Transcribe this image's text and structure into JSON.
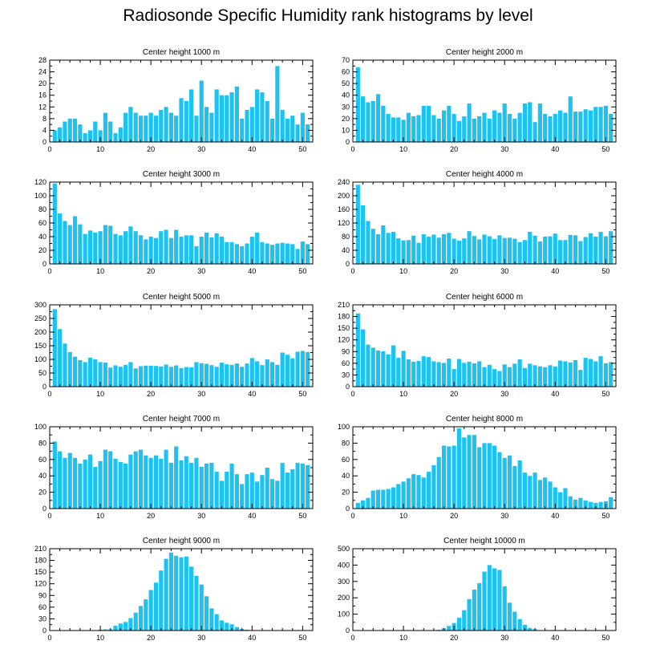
{
  "figure": {
    "title": "Radiosonde Specific Humidity rank histograms by level"
  },
  "colors": {
    "bar": "#1EC2F0",
    "axis": "#000000",
    "background": "#ffffff"
  },
  "chart_data": [
    {
      "type": "bar",
      "title": "Center height 1000 m",
      "x": [
        1,
        2,
        3,
        4,
        5,
        6,
        7,
        8,
        9,
        10,
        11,
        12,
        13,
        14,
        15,
        16,
        17,
        18,
        19,
        20,
        21,
        22,
        23,
        24,
        25,
        26,
        27,
        28,
        29,
        30,
        31,
        32,
        33,
        34,
        35,
        36,
        37,
        38,
        39,
        40,
        41,
        42,
        43,
        44,
        45,
        46,
        47,
        48,
        49,
        50,
        51
      ],
      "values": [
        4,
        5,
        7,
        8,
        8,
        6,
        3,
        4,
        7,
        4,
        10,
        7,
        3,
        5,
        10,
        12,
        10,
        9,
        9,
        10,
        9,
        11,
        12,
        10,
        9,
        15,
        14,
        18,
        9,
        21,
        12,
        10,
        18,
        16,
        16,
        17,
        19,
        8,
        11,
        12,
        18,
        17,
        14,
        8,
        26,
        11,
        8,
        9,
        6,
        10,
        6
      ],
      "xlim": [
        0,
        52
      ],
      "ylim": [
        0,
        28
      ],
      "xticks": [
        0,
        10,
        20,
        30,
        40,
        50
      ],
      "yticks": [
        0,
        4,
        8,
        12,
        16,
        20,
        24,
        28
      ]
    },
    {
      "type": "bar",
      "title": "Center height 2000 m",
      "x": [
        1,
        2,
        3,
        4,
        5,
        6,
        7,
        8,
        9,
        10,
        11,
        12,
        13,
        14,
        15,
        16,
        17,
        18,
        19,
        20,
        21,
        22,
        23,
        24,
        25,
        26,
        27,
        28,
        29,
        30,
        31,
        32,
        33,
        34,
        35,
        36,
        37,
        38,
        39,
        40,
        41,
        42,
        43,
        44,
        45,
        46,
        47,
        48,
        49,
        50,
        51
      ],
      "values": [
        64,
        39,
        34,
        35,
        41,
        31,
        24,
        21,
        21,
        19,
        25,
        22,
        23,
        31,
        31,
        23,
        20,
        27,
        31,
        24,
        18,
        22,
        33,
        20,
        22,
        25,
        20,
        27,
        25,
        33,
        24,
        20,
        25,
        33,
        34,
        17,
        33,
        24,
        22,
        24,
        27,
        25,
        39,
        26,
        26,
        28,
        27,
        30,
        30,
        31,
        24
      ],
      "xlim": [
        0,
        52
      ],
      "ylim": [
        0,
        70
      ],
      "xticks": [
        0,
        10,
        20,
        30,
        40,
        50
      ],
      "yticks": [
        0,
        10,
        20,
        30,
        40,
        50,
        60,
        70
      ]
    },
    {
      "type": "bar",
      "title": "Center height 3000 m",
      "x": [
        1,
        2,
        3,
        4,
        5,
        6,
        7,
        8,
        9,
        10,
        11,
        12,
        13,
        14,
        15,
        16,
        17,
        18,
        19,
        20,
        21,
        22,
        23,
        24,
        25,
        26,
        27,
        28,
        29,
        30,
        31,
        32,
        33,
        34,
        35,
        36,
        37,
        38,
        39,
        40,
        41,
        42,
        43,
        44,
        45,
        46,
        47,
        48,
        49,
        50,
        51
      ],
      "values": [
        118,
        74,
        63,
        57,
        70,
        58,
        44,
        49,
        46,
        48,
        57,
        56,
        44,
        42,
        48,
        55,
        48,
        42,
        36,
        40,
        38,
        48,
        50,
        38,
        50,
        40,
        42,
        42,
        26,
        40,
        46,
        39,
        45,
        40,
        32,
        32,
        29,
        26,
        30,
        40,
        46,
        32,
        30,
        28,
        30,
        31,
        30,
        29,
        22,
        33,
        29
      ],
      "xlim": [
        0,
        52
      ],
      "ylim": [
        0,
        120
      ],
      "xticks": [
        0,
        10,
        20,
        30,
        40,
        50
      ],
      "yticks": [
        0,
        20,
        40,
        60,
        80,
        100,
        120
      ]
    },
    {
      "type": "bar",
      "title": "Center height 4000 m",
      "x": [
        1,
        2,
        3,
        4,
        5,
        6,
        7,
        8,
        9,
        10,
        11,
        12,
        13,
        14,
        15,
        16,
        17,
        18,
        19,
        20,
        21,
        22,
        23,
        24,
        25,
        26,
        27,
        28,
        29,
        30,
        31,
        32,
        33,
        34,
        35,
        36,
        37,
        38,
        39,
        40,
        41,
        42,
        43,
        44,
        45,
        46,
        47,
        48,
        49,
        50,
        51
      ],
      "values": [
        232,
        172,
        126,
        103,
        87,
        113,
        91,
        94,
        75,
        69,
        70,
        83,
        62,
        87,
        80,
        86,
        77,
        87,
        91,
        74,
        68,
        75,
        96,
        82,
        72,
        86,
        81,
        73,
        84,
        76,
        77,
        74,
        64,
        70,
        94,
        83,
        66,
        80,
        81,
        89,
        70,
        70,
        85,
        84,
        67,
        79,
        90,
        80,
        94,
        81,
        96
      ],
      "xlim": [
        0,
        52
      ],
      "ylim": [
        0,
        240
      ],
      "xticks": [
        0,
        10,
        20,
        30,
        40,
        50
      ],
      "yticks": [
        0,
        40,
        80,
        120,
        160,
        200,
        240
      ]
    },
    {
      "type": "bar",
      "title": "Center height 5000 m",
      "x": [
        1,
        2,
        3,
        4,
        5,
        6,
        7,
        8,
        9,
        10,
        11,
        12,
        13,
        14,
        15,
        16,
        17,
        18,
        19,
        20,
        21,
        22,
        23,
        24,
        25,
        26,
        27,
        28,
        29,
        30,
        31,
        32,
        33,
        34,
        35,
        36,
        37,
        38,
        39,
        40,
        41,
        42,
        43,
        44,
        45,
        46,
        47,
        48,
        49,
        50,
        51
      ],
      "values": [
        284,
        211,
        158,
        127,
        110,
        97,
        90,
        106,
        100,
        90,
        88,
        70,
        78,
        73,
        80,
        90,
        67,
        75,
        77,
        77,
        76,
        74,
        81,
        73,
        78,
        68,
        72,
        71,
        90,
        86,
        84,
        79,
        73,
        88,
        82,
        80,
        85,
        73,
        85,
        105,
        93,
        79,
        100,
        90,
        80,
        125,
        117,
        104,
        128,
        131,
        127
      ],
      "xlim": [
        0,
        52
      ],
      "ylim": [
        0,
        300
      ],
      "xticks": [
        0,
        10,
        20,
        30,
        40,
        50
      ],
      "yticks": [
        0,
        50,
        100,
        150,
        200,
        250,
        300
      ]
    },
    {
      "type": "bar",
      "title": "Center height 6000 m",
      "x": [
        1,
        2,
        3,
        4,
        5,
        6,
        7,
        8,
        9,
        10,
        11,
        12,
        13,
        14,
        15,
        16,
        17,
        18,
        19,
        20,
        21,
        22,
        23,
        24,
        25,
        26,
        27,
        28,
        29,
        30,
        31,
        32,
        33,
        34,
        35,
        36,
        37,
        38,
        39,
        40,
        41,
        42,
        43,
        44,
        45,
        46,
        47,
        48,
        49,
        50,
        51
      ],
      "values": [
        188,
        147,
        108,
        100,
        93,
        91,
        83,
        106,
        74,
        92,
        70,
        64,
        66,
        78,
        76,
        65,
        63,
        61,
        72,
        45,
        71,
        61,
        64,
        60,
        65,
        50,
        56,
        45,
        40,
        57,
        50,
        59,
        70,
        48,
        59,
        55,
        52,
        50,
        55,
        52,
        67,
        65,
        62,
        68,
        43,
        74,
        71,
        65,
        78,
        60,
        63
      ],
      "xlim": [
        0,
        52
      ],
      "ylim": [
        0,
        210
      ],
      "xticks": [
        0,
        10,
        20,
        30,
        40,
        50
      ],
      "yticks": [
        0,
        30,
        60,
        90,
        120,
        150,
        180,
        210
      ]
    },
    {
      "type": "bar",
      "title": "Center height 7000 m",
      "x": [
        1,
        2,
        3,
        4,
        5,
        6,
        7,
        8,
        9,
        10,
        11,
        12,
        13,
        14,
        15,
        16,
        17,
        18,
        19,
        20,
        21,
        22,
        23,
        24,
        25,
        26,
        27,
        28,
        29,
        30,
        31,
        32,
        33,
        34,
        35,
        36,
        37,
        38,
        39,
        40,
        41,
        42,
        43,
        44,
        45,
        46,
        47,
        48,
        49,
        50,
        51
      ],
      "values": [
        82,
        70,
        62,
        68,
        62,
        55,
        60,
        66,
        51,
        58,
        72,
        70,
        61,
        57,
        55,
        66,
        70,
        72,
        65,
        62,
        65,
        61,
        72,
        56,
        76,
        59,
        64,
        56,
        62,
        51,
        55,
        56,
        45,
        34,
        45,
        55,
        42,
        30,
        42,
        44,
        33,
        41,
        50,
        36,
        34,
        56,
        44,
        48,
        56,
        55,
        53
      ],
      "xlim": [
        0,
        52
      ],
      "ylim": [
        0,
        100
      ],
      "xticks": [
        0,
        10,
        20,
        30,
        40,
        50
      ],
      "yticks": [
        0,
        20,
        40,
        60,
        80,
        100
      ]
    },
    {
      "type": "bar",
      "title": "Center height 8000 m",
      "x": [
        1,
        2,
        3,
        4,
        5,
        6,
        7,
        8,
        9,
        10,
        11,
        12,
        13,
        14,
        15,
        16,
        17,
        18,
        19,
        20,
        21,
        22,
        23,
        24,
        25,
        26,
        27,
        28,
        29,
        30,
        31,
        32,
        33,
        34,
        35,
        36,
        37,
        38,
        39,
        40,
        41,
        42,
        43,
        44,
        45,
        46,
        47,
        48,
        49,
        50,
        51
      ],
      "values": [
        7,
        10,
        13,
        22,
        23,
        23,
        24,
        26,
        30,
        33,
        37,
        42,
        41,
        38,
        45,
        53,
        63,
        77,
        76,
        77,
        98,
        87,
        90,
        90,
        75,
        80,
        80,
        77,
        69,
        62,
        65,
        52,
        59,
        44,
        40,
        44,
        35,
        38,
        33,
        26,
        20,
        25,
        15,
        11,
        13,
        10,
        8,
        7,
        8,
        9,
        14
      ],
      "xlim": [
        0,
        52
      ],
      "ylim": [
        0,
        100
      ],
      "xticks": [
        0,
        10,
        20,
        30,
        40,
        50
      ],
      "yticks": [
        0,
        20,
        40,
        60,
        80,
        100
      ]
    },
    {
      "type": "bar",
      "title": "Center height 9000 m",
      "x": [
        1,
        2,
        3,
        4,
        5,
        6,
        7,
        8,
        9,
        10,
        11,
        12,
        13,
        14,
        15,
        16,
        17,
        18,
        19,
        20,
        21,
        22,
        23,
        24,
        25,
        26,
        27,
        28,
        29,
        30,
        31,
        32,
        33,
        34,
        35,
        36,
        37,
        38,
        39,
        40,
        41,
        42,
        43,
        44,
        45,
        46,
        47,
        48,
        49,
        50,
        51
      ],
      "values": [
        0,
        0,
        0,
        0,
        0,
        0,
        0,
        0,
        1,
        2,
        3,
        3,
        12,
        18,
        22,
        32,
        46,
        63,
        80,
        104,
        123,
        154,
        184,
        200,
        192,
        188,
        190,
        164,
        140,
        118,
        88,
        57,
        42,
        26,
        20,
        16,
        9,
        4,
        2,
        1,
        0,
        0,
        0,
        0,
        0,
        0,
        0,
        0,
        0,
        0,
        0
      ],
      "xlim": [
        0,
        52
      ],
      "ylim": [
        0,
        210
      ],
      "xticks": [
        0,
        10,
        20,
        30,
        40,
        50
      ],
      "yticks": [
        0,
        30,
        60,
        90,
        120,
        150,
        180,
        210
      ]
    },
    {
      "type": "bar",
      "title": "Center height 10000 m",
      "x": [
        1,
        2,
        3,
        4,
        5,
        6,
        7,
        8,
        9,
        10,
        11,
        12,
        13,
        14,
        15,
        16,
        17,
        18,
        19,
        20,
        21,
        22,
        23,
        24,
        25,
        26,
        27,
        28,
        29,
        30,
        31,
        32,
        33,
        34,
        35,
        36,
        37,
        38,
        39,
        40,
        41,
        42,
        43,
        44,
        45,
        46,
        47,
        48,
        49,
        50,
        51
      ],
      "values": [
        0,
        0,
        0,
        0,
        0,
        0,
        0,
        0,
        0,
        0,
        0,
        0,
        0,
        0,
        0,
        0,
        4,
        14,
        28,
        46,
        78,
        124,
        192,
        250,
        290,
        360,
        400,
        380,
        370,
        270,
        170,
        115,
        70,
        35,
        16,
        8,
        0,
        0,
        0,
        0,
        0,
        0,
        0,
        0,
        0,
        0,
        0,
        0,
        0,
        0,
        0
      ],
      "xlim": [
        0,
        52
      ],
      "ylim": [
        0,
        500
      ],
      "xticks": [
        0,
        10,
        20,
        30,
        40,
        50
      ],
      "yticks": [
        0,
        100,
        200,
        300,
        400,
        500
      ]
    }
  ]
}
